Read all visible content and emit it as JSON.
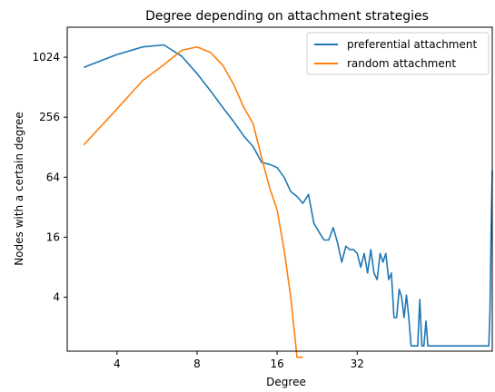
{
  "chart_data": {
    "type": "line",
    "title": "Degree depending on attachment strategies",
    "xlabel": "Degree",
    "ylabel": "Nodes with a certain degree",
    "xscale": "log2",
    "yscale": "log2",
    "xlim": [
      2.6,
      103
    ],
    "ylim": [
      1.15,
      2048
    ],
    "xticks": [
      4,
      8,
      16,
      32
    ],
    "yticks": [
      4,
      16,
      64,
      256,
      1024
    ],
    "grid": false,
    "legend_position": "top-right",
    "series": [
      {
        "name": "preferential attachment",
        "color": "#1f77b4",
        "x": [
          3,
          4,
          5,
          6,
          7,
          8,
          9,
          10,
          11,
          12,
          13,
          14,
          15,
          16,
          17,
          18,
          19,
          20,
          21,
          22,
          23,
          24,
          25,
          26,
          27,
          28,
          29,
          30,
          31,
          32,
          33,
          34,
          35,
          36,
          37,
          38,
          39,
          40,
          41,
          42,
          43,
          44,
          45,
          46,
          47,
          48,
          49,
          50,
          51,
          52,
          53,
          54,
          55,
          56,
          57,
          58,
          59,
          60,
          61,
          62,
          63,
          64,
          65,
          70,
          80,
          90,
          100,
          101,
          102,
          103
        ],
        "y": [
          810,
          1090,
          1300,
          1360,
          1050,
          700,
          470,
          320,
          230,
          165,
          130,
          90,
          86,
          80,
          64,
          46,
          41,
          35,
          43,
          22,
          18,
          15,
          15,
          20,
          14,
          9,
          13,
          12,
          12,
          11,
          8,
          11,
          7,
          12,
          7,
          6,
          11,
          9,
          11,
          6,
          7,
          2.5,
          2.5,
          4.8,
          4,
          2.5,
          4.2,
          2.5,
          1.3,
          1.3,
          1.3,
          1.3,
          3.8,
          1.3,
          1.3,
          2.3,
          1.3,
          1.3,
          1.3,
          1.3,
          1.3,
          1.3,
          1.3,
          1.3,
          1.3,
          1.3,
          1.3,
          3,
          20,
          75
        ]
      },
      {
        "name": "random attachment",
        "color": "#ff7f0e",
        "x": [
          3,
          4,
          5,
          6,
          7,
          8,
          9,
          10,
          11,
          12,
          13,
          14,
          15,
          16,
          17,
          18,
          19,
          20
        ],
        "y": [
          135,
          310,
          600,
          860,
          1200,
          1300,
          1140,
          850,
          540,
          320,
          220,
          100,
          50,
          30,
          12,
          4,
          1,
          1
        ]
      }
    ]
  }
}
